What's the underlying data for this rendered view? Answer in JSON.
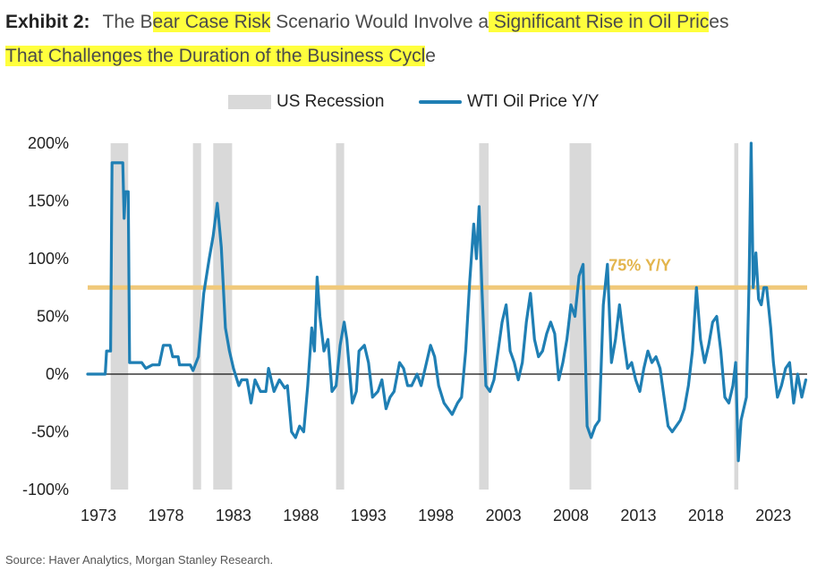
{
  "title": {
    "label": "Exhibit 2:",
    "p1": "The B",
    "p2": "ear Case Risk",
    "p3": " Scenario Would Involve a",
    "p4": " Significant Rise in Oil Pric",
    "p5": "es",
    "p6": "That Challenges the Duration of the Business Cycl",
    "p7": "e"
  },
  "source": "Source: Haver Analytics, Morgan Stanley Research.",
  "colors": {
    "line": "#1f7fb4",
    "recession": "#d9d9d9",
    "reference": "#f0c97a",
    "reference_text": "#e3b54c",
    "highlight": "#ffff3d"
  },
  "chart_data": {
    "type": "line",
    "title": "",
    "xlabel": "",
    "ylabel": "",
    "xlim": [
      1972.2,
      2025.5
    ],
    "ylim": [
      -100,
      200
    ],
    "x_ticks": [
      "1973",
      "1978",
      "1983",
      "1988",
      "1993",
      "1998",
      "2003",
      "2008",
      "2013",
      "2018",
      "2023"
    ],
    "y_ticks": [
      "200%",
      "150%",
      "100%",
      "50%",
      "0%",
      "-50%",
      "-100%"
    ],
    "legend": {
      "position": "top-center",
      "entries": [
        "US Recession",
        "WTI Oil Price Y/Y"
      ]
    },
    "recessions": [
      [
        1973.9,
        1975.2
      ],
      [
        1980.0,
        1980.6
      ],
      [
        1981.5,
        1982.9
      ],
      [
        1990.6,
        1991.2
      ],
      [
        2001.2,
        2001.9
      ],
      [
        2007.9,
        2009.5
      ],
      [
        2020.1,
        2020.4
      ]
    ],
    "reference_line": {
      "value": 75,
      "label": "75% Y/Y"
    },
    "series": [
      {
        "name": "WTI Oil Price Y/Y",
        "points": [
          [
            1972.2,
            0
          ],
          [
            1973.5,
            0
          ],
          [
            1973.6,
            20
          ],
          [
            1973.9,
            20
          ],
          [
            1974.0,
            183
          ],
          [
            1974.8,
            183
          ],
          [
            1974.9,
            135
          ],
          [
            1975.0,
            158
          ],
          [
            1975.2,
            158
          ],
          [
            1975.3,
            10
          ],
          [
            1976.2,
            10
          ],
          [
            1976.5,
            5
          ],
          [
            1977.0,
            8
          ],
          [
            1977.5,
            8
          ],
          [
            1977.8,
            25
          ],
          [
            1978.3,
            25
          ],
          [
            1978.5,
            15
          ],
          [
            1978.9,
            15
          ],
          [
            1979.0,
            8
          ],
          [
            1979.8,
            8
          ],
          [
            1980.0,
            3
          ],
          [
            1980.4,
            15
          ],
          [
            1980.8,
            70
          ],
          [
            1981.2,
            100
          ],
          [
            1981.5,
            120
          ],
          [
            1981.8,
            148
          ],
          [
            1982.1,
            110
          ],
          [
            1982.4,
            40
          ],
          [
            1982.7,
            20
          ],
          [
            1983.0,
            5
          ],
          [
            1983.4,
            -10
          ],
          [
            1983.6,
            -5
          ],
          [
            1984.0,
            -5
          ],
          [
            1984.3,
            -25
          ],
          [
            1984.6,
            -5
          ],
          [
            1985.0,
            -15
          ],
          [
            1985.4,
            -15
          ],
          [
            1985.6,
            5
          ],
          [
            1986.0,
            -15
          ],
          [
            1986.4,
            -5
          ],
          [
            1986.8,
            -12
          ],
          [
            1987.0,
            -10
          ],
          [
            1987.3,
            -50
          ],
          [
            1987.6,
            -55
          ],
          [
            1987.9,
            -45
          ],
          [
            1988.2,
            -50
          ],
          [
            1988.5,
            -10
          ],
          [
            1988.8,
            40
          ],
          [
            1989.0,
            20
          ],
          [
            1989.2,
            84
          ],
          [
            1989.4,
            50
          ],
          [
            1989.7,
            20
          ],
          [
            1990.0,
            30
          ],
          [
            1990.3,
            -15
          ],
          [
            1990.6,
            -10
          ],
          [
            1990.9,
            25
          ],
          [
            1991.2,
            45
          ],
          [
            1991.4,
            30
          ],
          [
            1991.8,
            -25
          ],
          [
            1992.1,
            -15
          ],
          [
            1992.3,
            20
          ],
          [
            1992.7,
            25
          ],
          [
            1993.0,
            10
          ],
          [
            1993.3,
            -20
          ],
          [
            1993.7,
            -15
          ],
          [
            1994.0,
            -5
          ],
          [
            1994.3,
            -30
          ],
          [
            1994.6,
            -20
          ],
          [
            1994.9,
            -15
          ],
          [
            1995.3,
            10
          ],
          [
            1995.6,
            5
          ],
          [
            1995.9,
            -10
          ],
          [
            1996.2,
            -10
          ],
          [
            1996.6,
            0
          ],
          [
            1996.9,
            -10
          ],
          [
            1997.2,
            5
          ],
          [
            1997.6,
            25
          ],
          [
            1997.9,
            15
          ],
          [
            1998.2,
            -10
          ],
          [
            1998.6,
            -25
          ],
          [
            1998.9,
            -30
          ],
          [
            1999.2,
            -35
          ],
          [
            1999.6,
            -25
          ],
          [
            1999.9,
            -20
          ],
          [
            2000.2,
            20
          ],
          [
            2000.5,
            80
          ],
          [
            2000.8,
            130
          ],
          [
            2001.0,
            100
          ],
          [
            2001.2,
            145
          ],
          [
            2001.4,
            75
          ],
          [
            2001.7,
            -10
          ],
          [
            2002.0,
            -15
          ],
          [
            2002.3,
            -5
          ],
          [
            2002.6,
            20
          ],
          [
            2002.9,
            45
          ],
          [
            2003.2,
            60
          ],
          [
            2003.5,
            20
          ],
          [
            2003.8,
            10
          ],
          [
            2004.1,
            -5
          ],
          [
            2004.4,
            10
          ],
          [
            2004.7,
            45
          ],
          [
            2005.0,
            70
          ],
          [
            2005.3,
            30
          ],
          [
            2005.6,
            15
          ],
          [
            2005.9,
            20
          ],
          [
            2006.2,
            35
          ],
          [
            2006.5,
            45
          ],
          [
            2006.8,
            35
          ],
          [
            2007.1,
            -5
          ],
          [
            2007.4,
            10
          ],
          [
            2007.7,
            30
          ],
          [
            2008.0,
            60
          ],
          [
            2008.3,
            50
          ],
          [
            2008.6,
            85
          ],
          [
            2008.9,
            95
          ],
          [
            2009.2,
            -45
          ],
          [
            2009.5,
            -55
          ],
          [
            2009.8,
            -45
          ],
          [
            2010.1,
            -40
          ],
          [
            2010.4,
            60
          ],
          [
            2010.7,
            95
          ],
          [
            2011.0,
            10
          ],
          [
            2011.3,
            30
          ],
          [
            2011.6,
            60
          ],
          [
            2011.9,
            30
          ],
          [
            2012.2,
            5
          ],
          [
            2012.5,
            10
          ],
          [
            2012.8,
            -5
          ],
          [
            2013.1,
            -15
          ],
          [
            2013.4,
            5
          ],
          [
            2013.7,
            20
          ],
          [
            2014.0,
            10
          ],
          [
            2014.3,
            15
          ],
          [
            2014.6,
            5
          ],
          [
            2014.9,
            -20
          ],
          [
            2015.2,
            -45
          ],
          [
            2015.5,
            -50
          ],
          [
            2015.8,
            -45
          ],
          [
            2016.1,
            -40
          ],
          [
            2016.4,
            -30
          ],
          [
            2016.7,
            -10
          ],
          [
            2017.0,
            20
          ],
          [
            2017.3,
            75
          ],
          [
            2017.6,
            30
          ],
          [
            2017.9,
            10
          ],
          [
            2018.2,
            25
          ],
          [
            2018.5,
            45
          ],
          [
            2018.8,
            50
          ],
          [
            2019.1,
            20
          ],
          [
            2019.4,
            -20
          ],
          [
            2019.7,
            -25
          ],
          [
            2020.0,
            -10
          ],
          [
            2020.2,
            10
          ],
          [
            2020.4,
            -75
          ],
          [
            2020.6,
            -40
          ],
          [
            2020.8,
            -30
          ],
          [
            2021.0,
            -20
          ],
          [
            2021.2,
            80
          ],
          [
            2021.35,
            200
          ],
          [
            2021.5,
            75
          ],
          [
            2021.7,
            105
          ],
          [
            2021.9,
            65
          ],
          [
            2022.1,
            60
          ],
          [
            2022.3,
            75
          ],
          [
            2022.5,
            75
          ],
          [
            2022.8,
            40
          ],
          [
            2023.0,
            10
          ],
          [
            2023.3,
            -20
          ],
          [
            2023.6,
            -10
          ],
          [
            2023.9,
            5
          ],
          [
            2024.2,
            10
          ],
          [
            2024.5,
            -25
          ],
          [
            2024.8,
            0
          ],
          [
            2025.1,
            -20
          ],
          [
            2025.4,
            -5
          ]
        ]
      }
    ]
  }
}
